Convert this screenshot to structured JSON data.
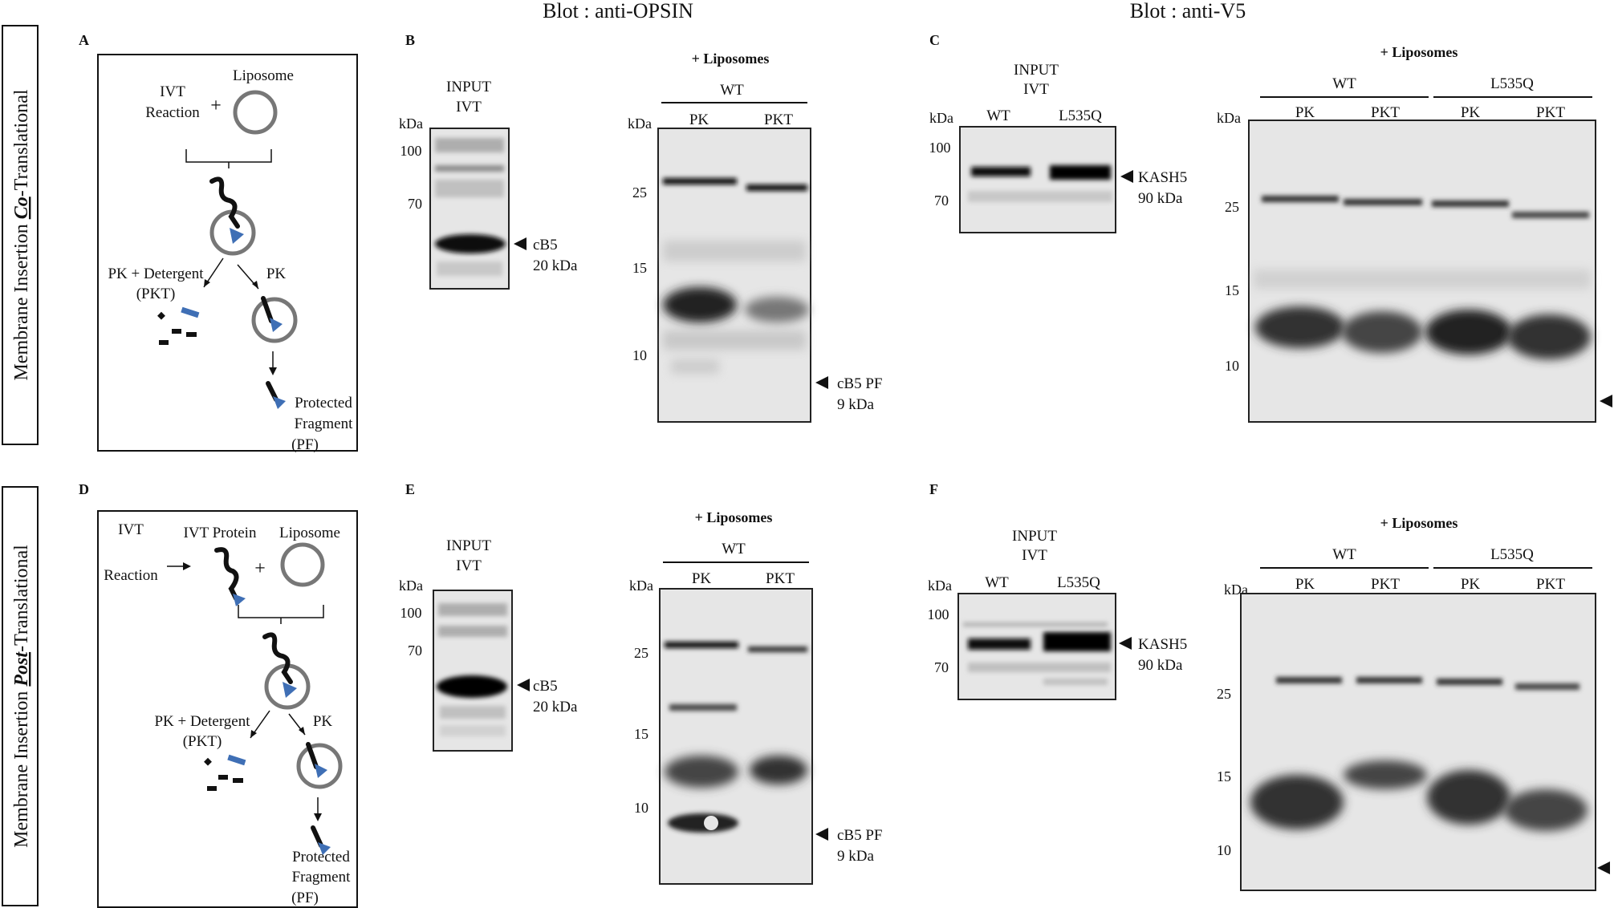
{
  "headers": {
    "opsin": "Blot : anti-OPSIN",
    "v5": "Blot : anti-V5"
  },
  "side_labels": {
    "co": {
      "prefix": "Membrane Insertion ",
      "emph": "Co",
      "suffix": "-Translational"
    },
    "post": {
      "prefix": "Membrane Insertion ",
      "emph": "Post",
      "suffix": "-Translational"
    }
  },
  "panel_letters": [
    "A",
    "B",
    "C",
    "D",
    "E",
    "F"
  ],
  "schematic_a": {
    "ivt": "IVT",
    "reaction": "Reaction",
    "plus": "+",
    "liposome": "Liposome",
    "pk_detergent": "PK + Detergent",
    "pkt": "(PKT)",
    "pk": "PK",
    "protected": "Protected",
    "fragment": "Fragment",
    "pf": "(PF)"
  },
  "schematic_d": {
    "ivt": "IVT",
    "reaction": "Reaction",
    "ivt_protein": "IVT Protein",
    "plus": "+",
    "liposome": "Liposome",
    "pk_detergent": "PK + Detergent",
    "pkt": "(PKT)",
    "pk": "PK",
    "protected": "Protected",
    "fragment": "Fragment",
    "pf": "(PF)"
  },
  "blot_b": {
    "input": "INPUT",
    "ivt": "IVT",
    "kda": "kDa",
    "markers": [
      "100",
      "70"
    ],
    "band_name": "cB5",
    "band_size": "20 kDa"
  },
  "blot_b2": {
    "title": "+ Liposomes",
    "group": "WT",
    "lanes": [
      "PK",
      "PKT"
    ],
    "kda": "kDa",
    "markers": [
      "25",
      "15",
      "10"
    ],
    "pf_name": "cB5 PF",
    "pf_size": "9 kDa"
  },
  "blot_c": {
    "input": "INPUT",
    "ivt": "IVT",
    "kda": "kDa",
    "lanes": [
      "WT",
      "L535Q"
    ],
    "markers": [
      "100",
      "70"
    ],
    "band_name": "KASH5",
    "band_size": "90 kDa"
  },
  "blot_c2": {
    "title": "+ Liposomes",
    "groups": [
      "WT",
      "L535Q"
    ],
    "lanes": [
      "PK",
      "PKT",
      "PK",
      "PKT"
    ],
    "kda": "kDa",
    "markers": [
      "25",
      "15",
      "10"
    ]
  },
  "blot_e": {
    "input": "INPUT",
    "ivt": "IVT",
    "kda": "kDa",
    "markers": [
      "100",
      "70"
    ],
    "band_name": "cB5",
    "band_size": "20 kDa"
  },
  "blot_e2": {
    "title": "+ Liposomes",
    "group": "WT",
    "lanes": [
      "PK",
      "PKT"
    ],
    "kda": "kDa",
    "markers": [
      "25",
      "15",
      "10"
    ],
    "pf_name": "cB5 PF",
    "pf_size": "9 kDa"
  },
  "blot_f": {
    "input": "INPUT",
    "ivt": "IVT",
    "kda": "kDa",
    "lanes": [
      "WT",
      "L535Q"
    ],
    "markers": [
      "100",
      "70"
    ],
    "band_name": "KASH5",
    "band_size": "90 kDa"
  },
  "blot_f2": {
    "title": "+ Liposomes",
    "groups": [
      "WT",
      "L535Q"
    ],
    "lanes": [
      "PK",
      "PKT",
      "PK",
      "PKT"
    ],
    "kda": "kDa",
    "markers": [
      "25",
      "15",
      "10"
    ]
  },
  "colors": {
    "membrane_bg": "#e6e6e6",
    "band": "#111111",
    "liposome": "#777777",
    "protein_domain": "#3f6fb5"
  }
}
